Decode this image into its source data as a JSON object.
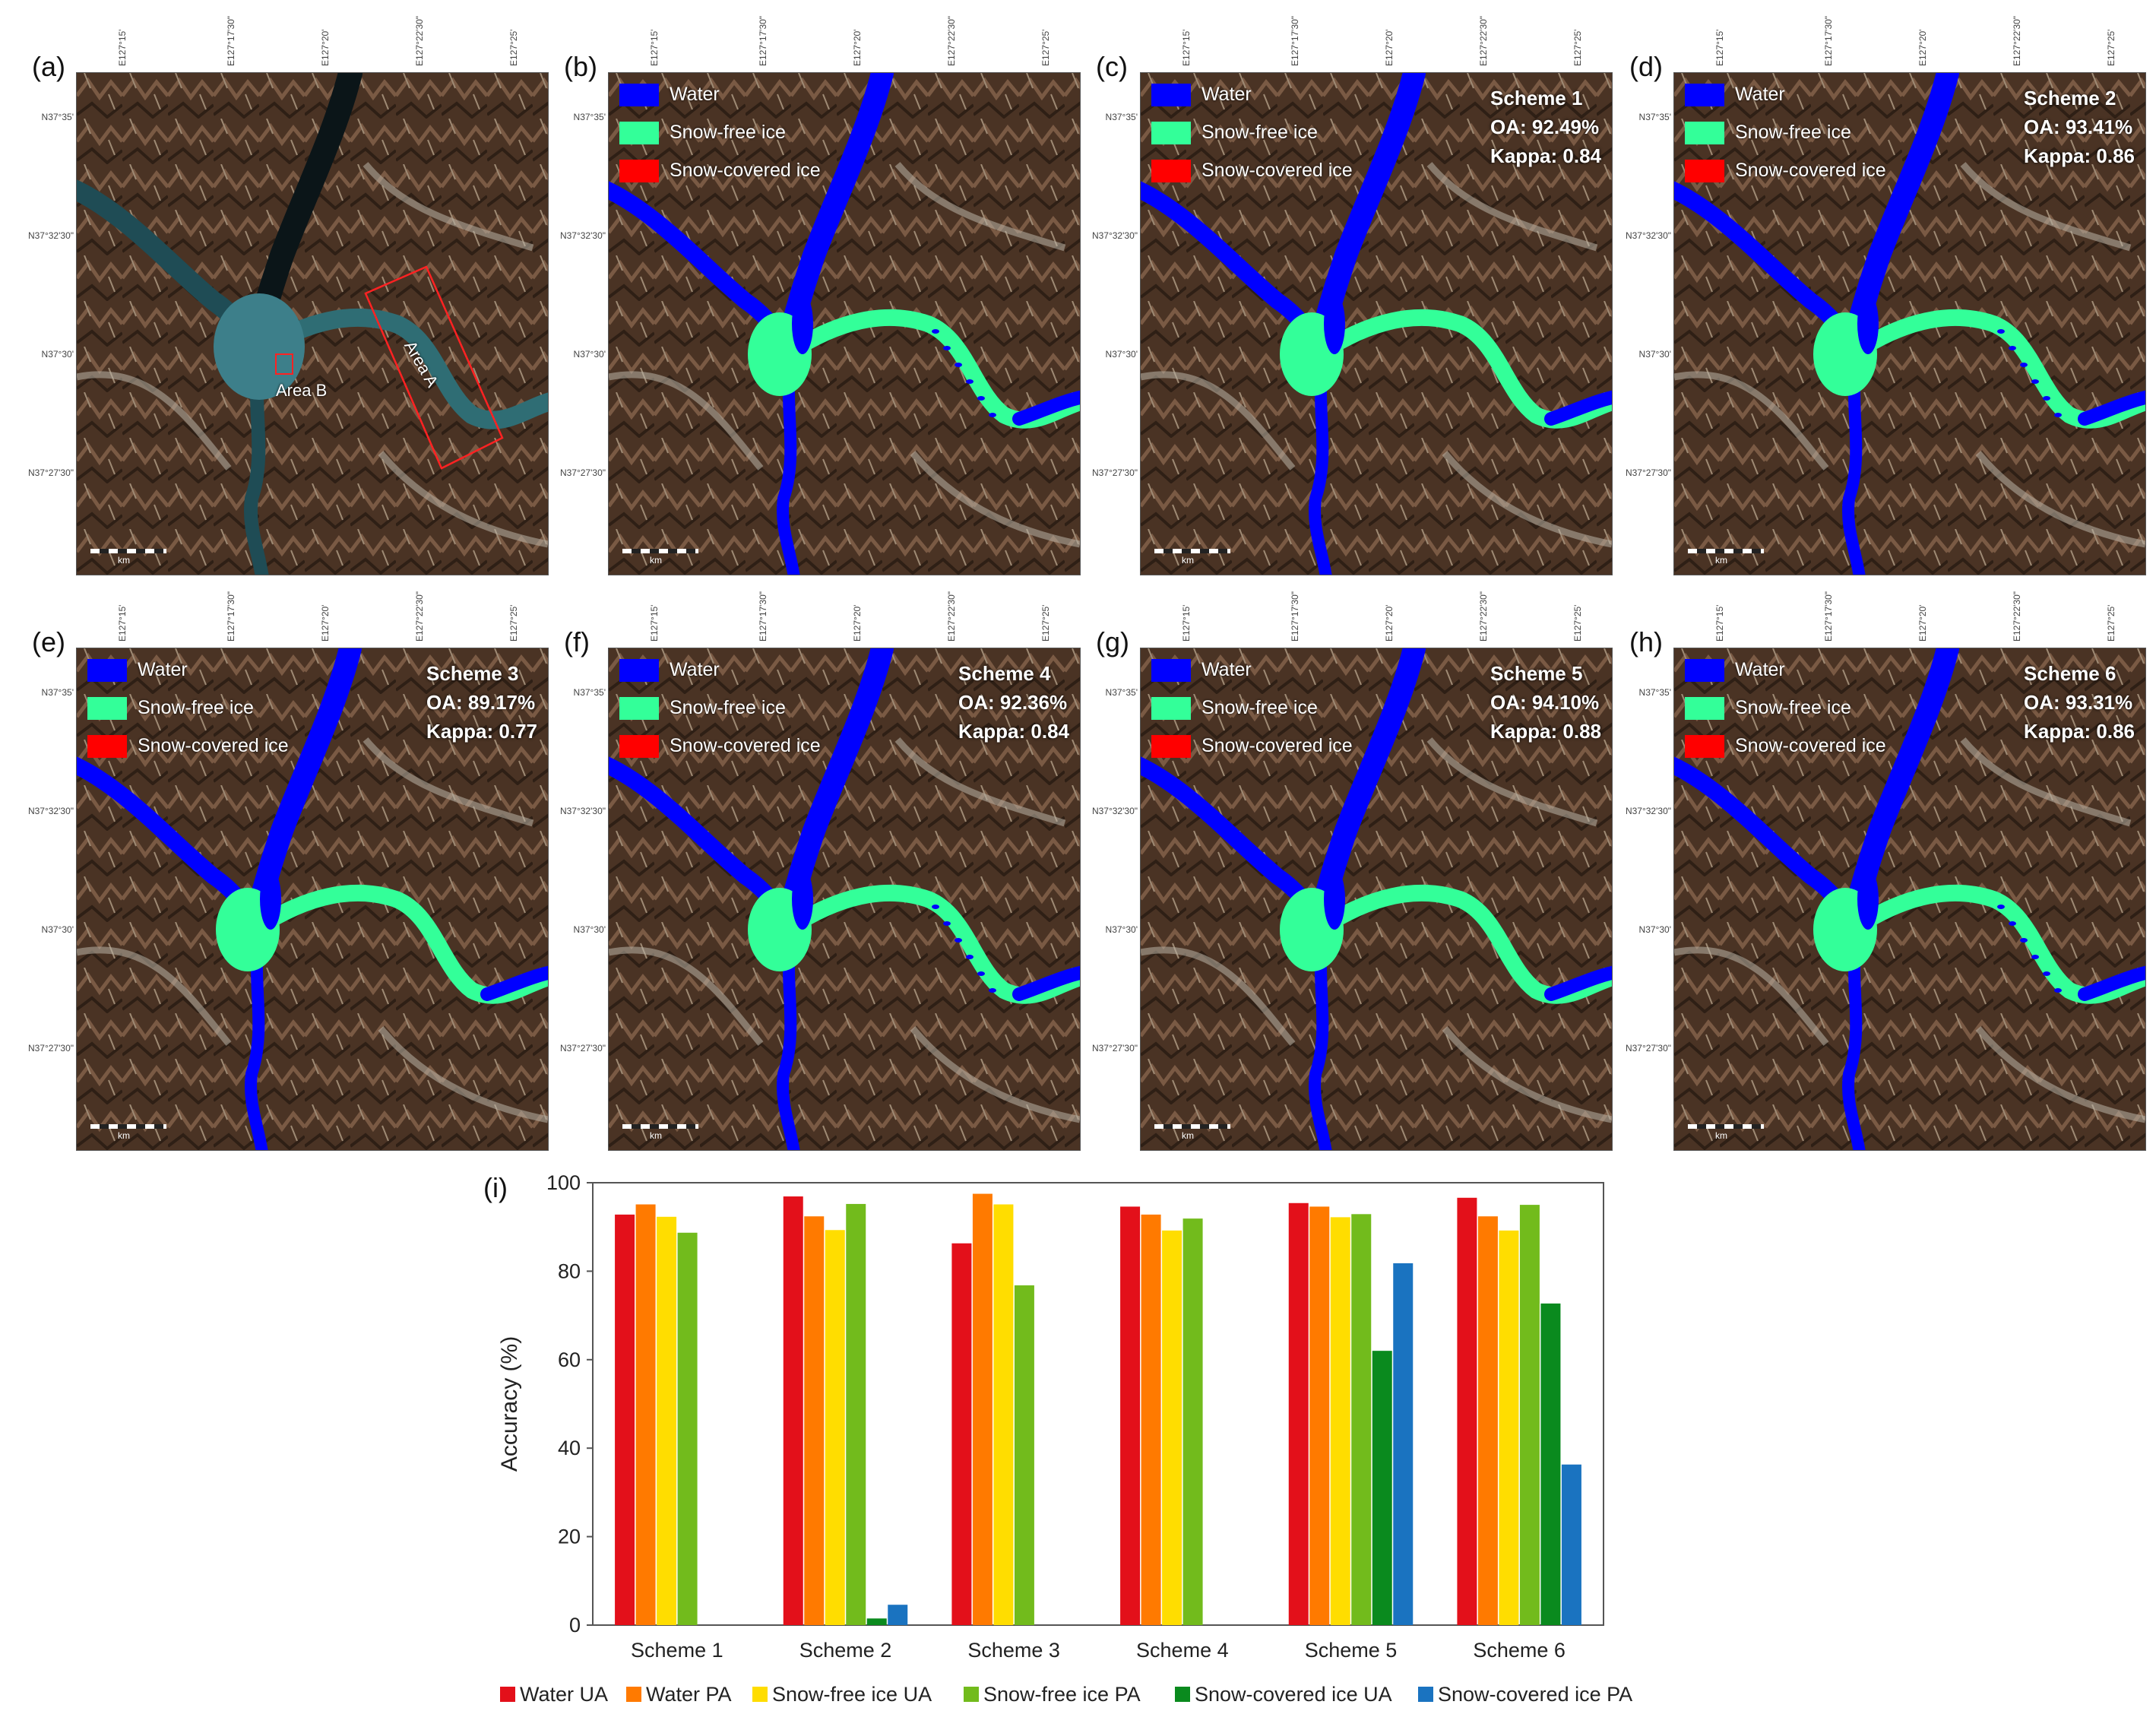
{
  "map_common": {
    "lon_ticks": [
      "E127°15'",
      "E127°17'30\"",
      "E127°20'",
      "E127°22'30\"",
      "E127°25'"
    ],
    "lat_ticks": [
      "N37°35'",
      "N37°32'30\"",
      "N37°30'",
      "N37°27'30\""
    ],
    "scale_unit": "km",
    "legend": [
      {
        "label": "Water",
        "color": "#0000ff"
      },
      {
        "label": "Snow-free ice",
        "color": "#33ff99"
      },
      {
        "label": "Snow-covered ice",
        "color": "#ff0000"
      }
    ]
  },
  "panels": [
    {
      "tag": "(a)",
      "type": "satellite",
      "area_a": "Area A",
      "area_b": "Area B"
    },
    {
      "tag": "(b)",
      "type": "reference"
    },
    {
      "tag": "(c)",
      "type": "scheme",
      "scheme": "Scheme 1",
      "oa": "OA: 92.49%",
      "kappa": "Kappa: 0.84"
    },
    {
      "tag": "(d)",
      "type": "scheme",
      "scheme": "Scheme 2",
      "oa": "OA: 93.41%",
      "kappa": "Kappa: 0.86"
    },
    {
      "tag": "(e)",
      "type": "scheme",
      "scheme": "Scheme 3",
      "oa": "OA: 89.17%",
      "kappa": "Kappa: 0.77"
    },
    {
      "tag": "(f)",
      "type": "scheme",
      "scheme": "Scheme 4",
      "oa": "OA: 92.36%",
      "kappa": "Kappa: 0.84"
    },
    {
      "tag": "(g)",
      "type": "scheme",
      "scheme": "Scheme 5",
      "oa": "OA: 94.10%",
      "kappa": "Kappa: 0.88"
    },
    {
      "tag": "(h)",
      "type": "scheme",
      "scheme": "Scheme 6",
      "oa": "OA: 93.31%",
      "kappa": "Kappa: 0.86"
    }
  ],
  "chart_label": "(i)",
  "chart_data": {
    "type": "bar",
    "categories": [
      "Scheme 1",
      "Scheme 2",
      "Scheme 3",
      "Scheme 4",
      "Scheme 5",
      "Scheme 6"
    ],
    "ylabel": "Accuracy (%)",
    "xlabel": "",
    "ylim": [
      0,
      100
    ],
    "yticks": [
      0,
      20,
      40,
      60,
      80,
      100
    ],
    "grid": false,
    "legend_position": "bottom",
    "series": [
      {
        "name": "Water UA",
        "color": "#e3101a",
        "values": [
          92.8,
          96.9,
          86.3,
          94.6,
          95.4,
          96.6
        ]
      },
      {
        "name": "Water PA",
        "color": "#ff7a00",
        "values": [
          95.1,
          92.4,
          97.5,
          92.8,
          94.6,
          92.4
        ]
      },
      {
        "name": "Snow-free ice UA",
        "color": "#ffdd00",
        "values": [
          92.3,
          89.3,
          95.1,
          89.2,
          92.2,
          89.2
        ]
      },
      {
        "name": "Snow-free ice PA",
        "color": "#72bb1c",
        "values": [
          88.7,
          95.2,
          76.8,
          91.9,
          92.9,
          95.0
        ]
      },
      {
        "name": "Snow-covered ice UA",
        "color": "#0a8a1e",
        "values": [
          0,
          1.5,
          0,
          0,
          62.0,
          72.7
        ]
      },
      {
        "name": "Snow-covered ice PA",
        "color": "#1a73c0",
        "values": [
          0,
          4.6,
          0,
          0,
          81.8,
          36.3
        ]
      }
    ]
  }
}
